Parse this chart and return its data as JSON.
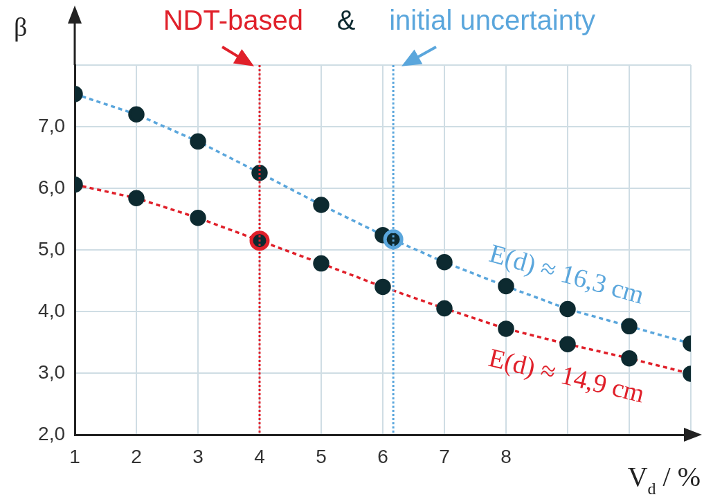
{
  "chart_data": {
    "type": "line",
    "xlabel": "V$_{d}$ / %",
    "ylabel": "β",
    "xlim": [
      1,
      11
    ],
    "ylim": [
      2,
      8
    ],
    "xticks": [
      1,
      2,
      3,
      4,
      5,
      6,
      7,
      8,
      {
        "value": 9,
        "label": null
      },
      {
        "value": 10,
        "label": null
      },
      {
        "value": 11,
        "label": null
      }
    ],
    "yticks": [
      {
        "value": 2,
        "label": "2,0"
      },
      {
        "value": 3,
        "label": "3,0"
      },
      {
        "value": 4,
        "label": "4,0"
      },
      {
        "value": 5,
        "label": "5,0"
      },
      {
        "value": 6,
        "label": "6,0"
      },
      {
        "value": 7,
        "label": "7,0"
      },
      {
        "value": 8,
        "label": null
      }
    ],
    "grid": true,
    "legend": false,
    "marker": "circle",
    "line_style": "dashed",
    "x": [
      1,
      2,
      3,
      4,
      5,
      6,
      7,
      8,
      9,
      10,
      11
    ],
    "series": [
      {
        "name": "E(d) ≈ 16,3 cm",
        "color": "#5aa6dc",
        "values": [
          7.53,
          7.2,
          6.76,
          6.25,
          5.73,
          5.24,
          4.8,
          4.41,
          4.04,
          3.76,
          3.48
        ]
      },
      {
        "name": "E(d) ≈ 14,9 cm",
        "color": "#e0202a",
        "values": [
          6.06,
          5.84,
          5.52,
          5.15,
          4.78,
          4.4,
          4.05,
          3.72,
          3.47,
          3.24,
          2.99
        ]
      },
      {
        "type": "scatter",
        "color": "#e0202a",
        "x": [
          4
        ],
        "values": [
          5.15
        ]
      },
      {
        "type": "scatter",
        "color": "#5aa6dc",
        "x": [
          6.17
        ],
        "values": [
          5.17
        ]
      }
    ],
    "ref_lines": [
      {
        "axis": "x",
        "value": 4,
        "label": "NDT-based",
        "color": "#e0202a",
        "line_style": "dotted"
      },
      {
        "axis": "x",
        "value": 6.17,
        "label": "initial uncertainty",
        "color": "#5aa6dc",
        "line_style": "dotted"
      }
    ],
    "annotations": [
      "&"
    ]
  }
}
